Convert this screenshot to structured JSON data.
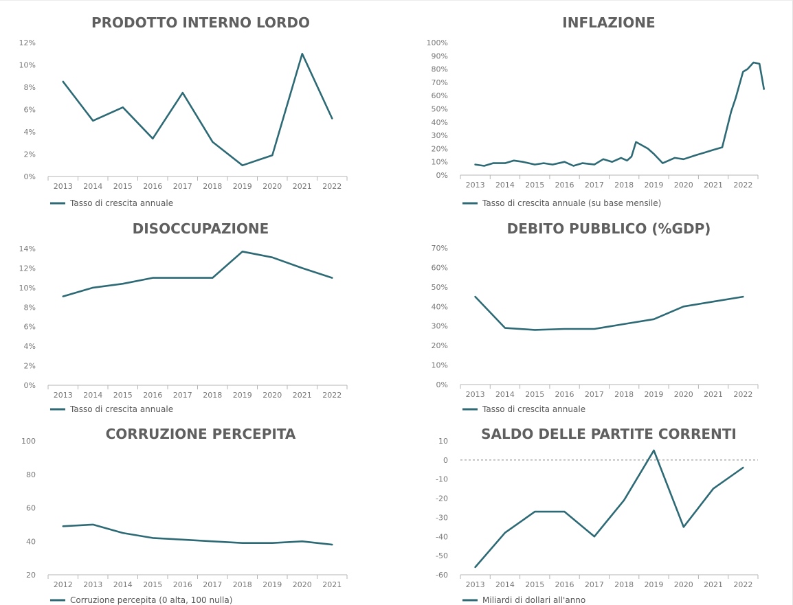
{
  "colors": {
    "series": "#2d6a75",
    "title": "#5f5f5f",
    "axis": "#b5b5b5",
    "tick_text": "#777777"
  },
  "chart_data": [
    {
      "type": "line",
      "title": "PRODOTTO INTERNO LORDO",
      "legend": "Tasso di crescita annuale",
      "x_tick_labels": [
        "2013",
        "2014",
        "2015",
        "2016",
        "2017",
        "2018",
        "2019",
        "2020",
        "2021",
        "2022"
      ],
      "y_tick_labels": [
        "0%",
        "2%",
        "4%",
        "6%",
        "8%",
        "10%",
        "12%"
      ],
      "ylim": [
        0,
        12
      ],
      "series": [
        {
          "x": [
            2013,
            2014,
            2015,
            2016,
            2017,
            2018,
            2019,
            2020,
            2021,
            2022
          ],
          "values": [
            8.5,
            5.0,
            6.2,
            3.4,
            7.5,
            3.1,
            1.0,
            1.9,
            11.0,
            5.2
          ]
        }
      ]
    },
    {
      "type": "line",
      "title": "INFLAZIONE",
      "legend": "Tasso di crescita annuale (su base mensile)",
      "x_tick_labels": [
        "2013",
        "2014",
        "2015",
        "2016",
        "2017",
        "2018",
        "2019",
        "2020",
        "2021",
        "2022"
      ],
      "y_tick_labels": [
        "0%",
        "10%",
        "20%",
        "30%",
        "40%",
        "50%",
        "60%",
        "70%",
        "80%",
        "90%",
        "100%"
      ],
      "ylim": [
        0,
        100
      ],
      "series": [
        {
          "x": [
            2013.0,
            2013.3,
            2013.6,
            2014.0,
            2014.3,
            2014.6,
            2015.0,
            2015.3,
            2015.6,
            2016.0,
            2016.3,
            2016.6,
            2017.0,
            2017.3,
            2017.6,
            2017.9,
            2018.1,
            2018.25,
            2018.4,
            2018.8,
            2019.0,
            2019.3,
            2019.7,
            2020.0,
            2020.4,
            2020.7,
            2021.0,
            2021.3,
            2021.6,
            2021.75,
            2021.9,
            2022.0,
            2022.15,
            2022.35,
            2022.55,
            2022.7
          ],
          "values": [
            8,
            7,
            9,
            9,
            11,
            10,
            8,
            9,
            8,
            10,
            7,
            9,
            8,
            12,
            10,
            13,
            11,
            14,
            25,
            20,
            16,
            9,
            13,
            12,
            15,
            17,
            19,
            21,
            48,
            58,
            70,
            78,
            80,
            85,
            84,
            65
          ]
        }
      ]
    },
    {
      "type": "line",
      "title": "DISOCCUPAZIONE",
      "legend": "Tasso di crescita annuale",
      "x_tick_labels": [
        "2013",
        "2014",
        "2015",
        "2016",
        "2017",
        "2018",
        "2019",
        "2020",
        "2021",
        "2022"
      ],
      "y_tick_labels": [
        "0%",
        "2%",
        "4%",
        "6%",
        "8%",
        "10%",
        "12%",
        "14%"
      ],
      "ylim": [
        0,
        14
      ],
      "series": [
        {
          "x": [
            2013,
            2014,
            2015,
            2016,
            2017,
            2018,
            2019,
            2020,
            2021,
            2022
          ],
          "values": [
            9.1,
            10.0,
            10.4,
            11.0,
            11.0,
            11.0,
            13.7,
            13.1,
            12.0,
            11.0
          ]
        }
      ]
    },
    {
      "type": "line",
      "title": "DEBITO PUBBLICO (%GDP)",
      "legend": "Tasso di crescita annuale",
      "x_tick_labels": [
        "2013",
        "2014",
        "2015",
        "2016",
        "2017",
        "2018",
        "2019",
        "2020",
        "2021",
        "2022"
      ],
      "y_tick_labels": [
        "0%",
        "10%",
        "20%",
        "30%",
        "40%",
        "50%",
        "60%",
        "70%"
      ],
      "ylim": [
        0,
        70
      ],
      "series": [
        {
          "x": [
            2013,
            2014,
            2015,
            2016,
            2017,
            2018,
            2019,
            2020,
            2021,
            2022
          ],
          "values": [
            45,
            29,
            28,
            28.5,
            28.5,
            31,
            33.5,
            40,
            42.5,
            45
          ]
        }
      ]
    },
    {
      "type": "line",
      "title": "CORRUZIONE PERCEPITA",
      "legend": "Corruzione percepita (0 alta, 100 nulla)",
      "x_tick_labels": [
        "2012",
        "2013",
        "2014",
        "2015",
        "2016",
        "2017",
        "2018",
        "2019",
        "2020",
        "2021"
      ],
      "y_tick_labels": [
        "20",
        "40",
        "60",
        "80",
        "100"
      ],
      "ylim": [
        20,
        100
      ],
      "series": [
        {
          "x": [
            2012,
            2013,
            2014,
            2015,
            2016,
            2017,
            2018,
            2019,
            2020,
            2021
          ],
          "values": [
            49,
            50,
            45,
            42,
            41,
            40,
            39,
            39,
            40,
            38
          ]
        }
      ]
    },
    {
      "type": "line",
      "title": "SALDO DELLE PARTITE CORRENTI",
      "legend": "Miliardi di dollari all'anno",
      "x_tick_labels": [
        "2013",
        "2014",
        "2015",
        "2016",
        "2017",
        "2018",
        "2019",
        "2020",
        "2021",
        "2022"
      ],
      "y_tick_labels": [
        "-60",
        "-50",
        "-40",
        "-30",
        "-20",
        "-10",
        "0",
        "10"
      ],
      "ylim": [
        -60,
        10
      ],
      "reference_line_y": 0,
      "series": [
        {
          "x": [
            2013,
            2014,
            2015,
            2016,
            2017,
            2018,
            2019,
            2020,
            2021,
            2022
          ],
          "values": [
            -56,
            -38,
            -27,
            -27,
            -40,
            -21,
            5,
            -35,
            -15,
            -4
          ]
        }
      ]
    }
  ]
}
